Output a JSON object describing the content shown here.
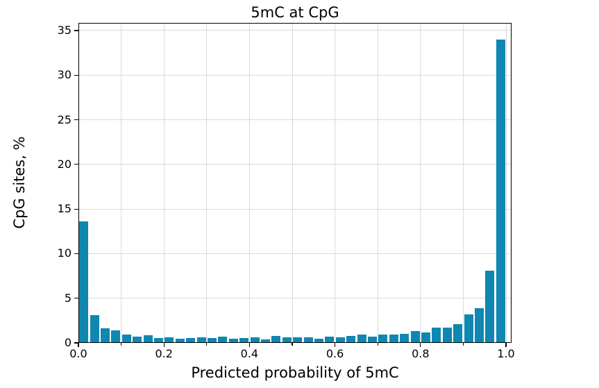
{
  "chart_data": {
    "type": "bar",
    "subtype": "histogram",
    "title": "5mC at CpG",
    "xlabel": "Predicted probability of 5mC",
    "ylabel": "CpG sites, %",
    "bin_start": 0.0,
    "bin_width": 0.025,
    "n_bins": 40,
    "values": [
      13.6,
      3.1,
      1.65,
      1.4,
      0.9,
      0.7,
      0.85,
      0.55,
      0.65,
      0.5,
      0.55,
      0.6,
      0.55,
      0.7,
      0.45,
      0.55,
      0.65,
      0.4,
      0.75,
      0.6,
      0.65,
      0.6,
      0.5,
      0.7,
      0.6,
      0.75,
      0.9,
      0.7,
      0.95,
      0.9,
      1.0,
      1.35,
      1.15,
      1.7,
      1.7,
      2.1,
      3.2,
      3.9,
      8.1,
      34.0
    ],
    "xlim": [
      0.0,
      1.013
    ],
    "ylim": [
      0,
      35.85
    ],
    "xticks_major": [
      0.0,
      0.2,
      0.4,
      0.6,
      0.8,
      1.0
    ],
    "xtick_labels": [
      "0.0",
      "0.2",
      "0.4",
      "0.6",
      "0.8",
      "1.0"
    ],
    "xticks_minor": [
      0.1,
      0.3,
      0.5,
      0.7,
      0.9
    ],
    "yticks": [
      0,
      5,
      10,
      15,
      20,
      25,
      30,
      35
    ],
    "ytick_labels": [
      "0",
      "5",
      "10",
      "15",
      "20",
      "25",
      "30",
      "35"
    ],
    "x_gridlines": [
      0.1,
      0.2,
      0.3,
      0.4,
      0.5,
      0.6,
      0.7,
      0.8,
      0.9,
      1.0
    ],
    "grid": true,
    "legend": null,
    "bar_color": "#0f87b0",
    "bar_rel_width": 0.84,
    "grid_color": "#d9d9d9",
    "spine_color": "#000000",
    "text_color": "#000000"
  }
}
